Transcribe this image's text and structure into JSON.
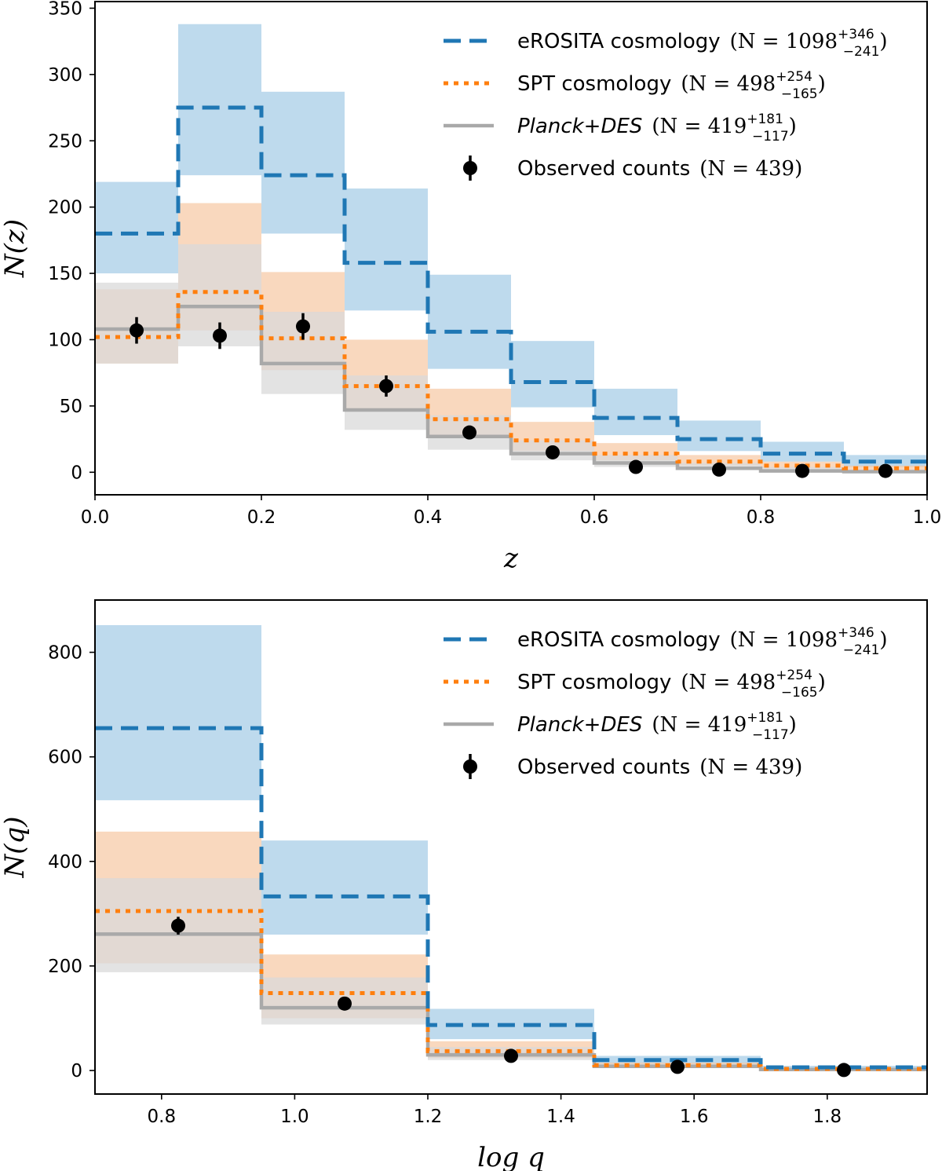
{
  "colors": {
    "erosita": "#1f77b4",
    "spt": "#ff7f0e",
    "planck": "#a9a9a9",
    "observed": "#000000",
    "erosita_band": "#a2cbe5",
    "spt_band": "#f6c8a3",
    "planck_band": "#d9d9d9"
  },
  "chart_data": [
    {
      "type": "step-histogram",
      "title": "",
      "xlabel": "z",
      "ylabel": "N(z)",
      "xlim": [
        0.0,
        1.0
      ],
      "ylim": [
        -17,
        355
      ],
      "xticks": [
        0.0,
        0.2,
        0.4,
        0.6,
        0.8,
        1.0
      ],
      "xtick_labels": [
        "0.0",
        "0.2",
        "0.4",
        "0.6",
        "0.8",
        "1.0"
      ],
      "yticks": [
        0,
        50,
        100,
        150,
        200,
        250,
        300,
        350
      ],
      "ytick_labels": [
        "0",
        "50",
        "100",
        "150",
        "200",
        "250",
        "300",
        "350"
      ],
      "bin_edges": [
        0.0,
        0.1,
        0.2,
        0.3,
        0.4,
        0.5,
        0.6,
        0.7,
        0.8,
        0.9,
        1.0
      ],
      "legend": {
        "position": "upper-right",
        "entries": [
          {
            "series": "erosita",
            "text": "eROSITA cosmology",
            "math_prefix": "(N = 1098",
            "sup": "+346",
            "sub": "−241",
            "math_suffix": ")"
          },
          {
            "series": "spt",
            "text": "SPT cosmology",
            "math_prefix": "(N = 498",
            "sup": "+254",
            "sub": "−165",
            "math_suffix": ")"
          },
          {
            "series": "planck",
            "text": "Planck+DES",
            "math_prefix": "(N = 419",
            "sup": "+181",
            "sub": "−117",
            "math_suffix": ")"
          },
          {
            "series": "observed",
            "text": "Observed counts",
            "math_prefix": "(N = 439)",
            "sup": "",
            "sub": "",
            "math_suffix": ""
          }
        ]
      },
      "series": [
        {
          "name": "erosita",
          "label": "eROSITA cosmology",
          "style": "dashed",
          "values": [
            180,
            275,
            224,
            158,
            106,
            68,
            41,
            25,
            14,
            8
          ],
          "lower": [
            150,
            224,
            180,
            122,
            78,
            49,
            28,
            16,
            8,
            4
          ],
          "upper": [
            219,
            338,
            287,
            214,
            149,
            99,
            63,
            39,
            23,
            13
          ]
        },
        {
          "name": "spt",
          "label": "SPT cosmology",
          "style": "dotted",
          "values": [
            102,
            136,
            101,
            65,
            40,
            24,
            14,
            8,
            5,
            3
          ],
          "lower": [
            82,
            107,
            77,
            47,
            28,
            16,
            9,
            5,
            3,
            2
          ],
          "upper": [
            138,
            203,
            151,
            100,
            63,
            38,
            22,
            13,
            8,
            5
          ]
        },
        {
          "name": "planck",
          "label": "Planck+DES",
          "style": "solid",
          "values": [
            108,
            125,
            82,
            47,
            27,
            14,
            7,
            3,
            1,
            0.5
          ],
          "lower": [
            82,
            95,
            59,
            32,
            17,
            9,
            4,
            2,
            0.5,
            0
          ],
          "upper": [
            143,
            172,
            121,
            73,
            43,
            24,
            13,
            7,
            4,
            2
          ]
        },
        {
          "name": "observed",
          "label": "Observed counts",
          "style": "points",
          "x": [
            0.05,
            0.15,
            0.25,
            0.35,
            0.45,
            0.55,
            0.65,
            0.75,
            0.85,
            0.95
          ],
          "y": [
            107,
            103,
            110,
            65,
            30,
            15,
            4,
            2,
            1,
            1
          ],
          "yerr": [
            10,
            10,
            10,
            8,
            5,
            4,
            2,
            1.4,
            1,
            1
          ]
        }
      ]
    },
    {
      "type": "step-histogram",
      "title": "",
      "xlabel": "log q",
      "ylabel": "N(q)",
      "xlim": [
        0.7,
        1.95
      ],
      "ylim": [
        -45,
        900
      ],
      "xticks": [
        0.8,
        1.0,
        1.2,
        1.4,
        1.6,
        1.8
      ],
      "xtick_labels": [
        "0.8",
        "1.0",
        "1.2",
        "1.4",
        "1.6",
        "1.8"
      ],
      "yticks": [
        0,
        200,
        400,
        600,
        800
      ],
      "ytick_labels": [
        "0",
        "200",
        "400",
        "600",
        "800"
      ],
      "bin_edges": [
        0.7,
        0.95,
        1.2,
        1.45,
        1.7,
        1.95
      ],
      "legend": {
        "position": "upper-right",
        "entries": [
          {
            "series": "erosita",
            "text": "eROSITA cosmology",
            "math_prefix": "(N = 1098",
            "sup": "+346",
            "sub": "−241",
            "math_suffix": ")"
          },
          {
            "series": "spt",
            "text": "SPT cosmology",
            "math_prefix": "(N = 498",
            "sup": "+254",
            "sub": "−165",
            "math_suffix": ")"
          },
          {
            "series": "planck",
            "text": "Planck+DES",
            "math_prefix": "(N = 419",
            "sup": "+181",
            "sub": "−117",
            "math_suffix": ")"
          },
          {
            "series": "observed",
            "text": "Observed counts",
            "math_prefix": "(N = 439)",
            "sup": "",
            "sub": "",
            "math_suffix": ""
          }
        ]
      },
      "series": [
        {
          "name": "erosita",
          "label": "eROSITA cosmology",
          "style": "dashed",
          "values": [
            655,
            333,
            87,
            20,
            6
          ],
          "lower": [
            517,
            260,
            60,
            12,
            3
          ],
          "upper": [
            852,
            440,
            118,
            28,
            9
          ]
        },
        {
          "name": "spt",
          "label": "SPT cosmology",
          "style": "dotted",
          "values": [
            305,
            148,
            37,
            10,
            3
          ],
          "lower": [
            205,
            100,
            24,
            6,
            1
          ],
          "upper": [
            457,
            222,
            56,
            15,
            5
          ]
        },
        {
          "name": "planck",
          "label": "Planck+DES",
          "style": "solid",
          "values": [
            261,
            120,
            30,
            8,
            2
          ],
          "lower": [
            188,
            88,
            20,
            5,
            1
          ],
          "upper": [
            368,
            178,
            45,
            13,
            4
          ]
        },
        {
          "name": "observed",
          "label": "Observed counts",
          "style": "points",
          "x": [
            0.825,
            1.075,
            1.325,
            1.575,
            1.825
          ],
          "y": [
            277,
            128,
            28,
            7,
            1
          ],
          "yerr": [
            17,
            11,
            5,
            3,
            1
          ]
        }
      ]
    }
  ]
}
